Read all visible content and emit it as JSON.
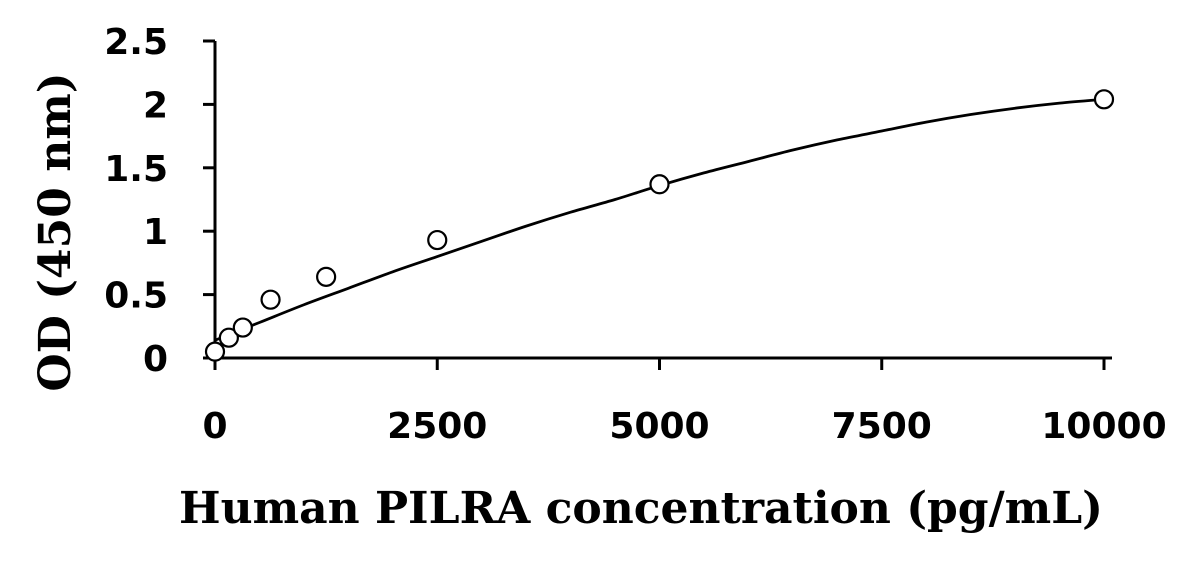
{
  "chart_data": {
    "type": "scatter",
    "xlabel": "Human PILRA concentration (pg/mL)",
    "ylabel": "OD (450 nm)",
    "xlim": [
      0,
      10000
    ],
    "ylim": [
      0,
      2.5
    ],
    "x_ticks": [
      "0",
      "2500",
      "5000",
      "7500",
      "10000"
    ],
    "y_ticks": [
      "0",
      "0.5",
      "1",
      "1.5",
      "2",
      "2.5"
    ],
    "grid": false,
    "series": [
      {
        "points": [
          {
            "x": 0,
            "y": 0.05
          },
          {
            "x": 156,
            "y": 0.16
          },
          {
            "x": 313,
            "y": 0.24
          },
          {
            "x": 625,
            "y": 0.46
          },
          {
            "x": 1250,
            "y": 0.64
          },
          {
            "x": 2500,
            "y": 0.93
          },
          {
            "x": 5000,
            "y": 1.37
          },
          {
            "x": 10000,
            "y": 2.04
          }
        ]
      }
    ],
    "fit_curve": {
      "x": [
        0,
        500,
        1000,
        1500,
        2000,
        2500,
        3000,
        3500,
        4000,
        4500,
        5000,
        5500,
        6000,
        6500,
        7000,
        7500,
        8000,
        8500,
        9000,
        9500,
        10000
      ],
      "y": [
        0.14,
        0.28,
        0.42,
        0.55,
        0.68,
        0.8,
        0.92,
        1.04,
        1.15,
        1.25,
        1.36,
        1.46,
        1.55,
        1.64,
        1.72,
        1.79,
        1.86,
        1.92,
        1.97,
        2.01,
        2.04
      ]
    }
  }
}
